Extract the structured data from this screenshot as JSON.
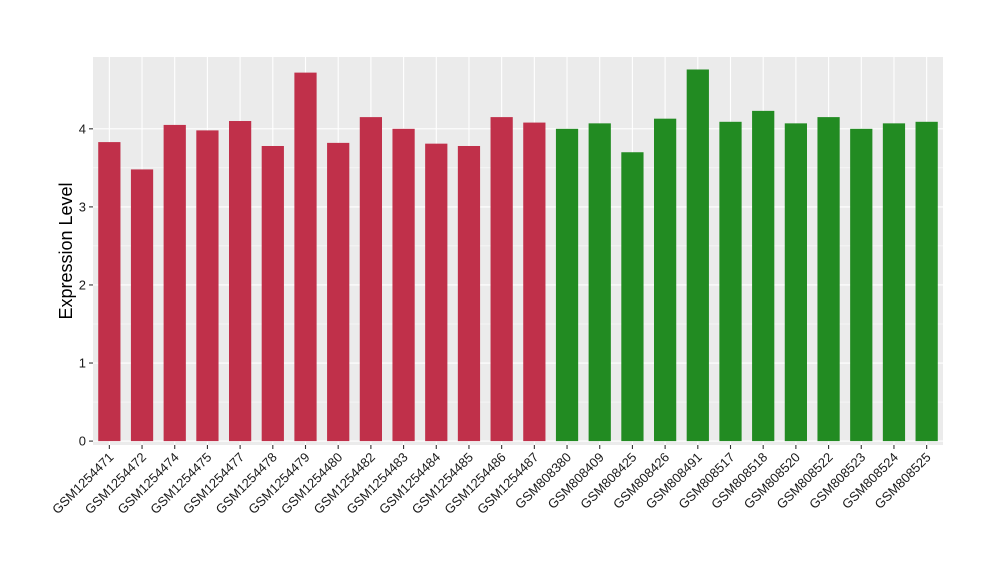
{
  "chart_data": {
    "type": "bar",
    "ylabel": "Expression Level",
    "xlabel": "",
    "title": "",
    "ylim": [
      -0.05,
      4.92
    ],
    "yticks": [
      0,
      1,
      2,
      3,
      4
    ],
    "grid": true,
    "categories": [
      "GSM1254471",
      "GSM1254472",
      "GSM1254474",
      "GSM1254475",
      "GSM1254477",
      "GSM1254478",
      "GSM1254479",
      "GSM1254480",
      "GSM1254482",
      "GSM1254483",
      "GSM1254484",
      "GSM1254485",
      "GSM1254486",
      "GSM1254487",
      "GSM808380",
      "GSM808409",
      "GSM808425",
      "GSM808426",
      "GSM808491",
      "GSM808517",
      "GSM808518",
      "GSM808520",
      "GSM808522",
      "GSM808523",
      "GSM808524",
      "GSM808525"
    ],
    "values": [
      3.83,
      3.48,
      4.05,
      3.98,
      4.1,
      3.78,
      4.72,
      3.82,
      4.15,
      4.0,
      3.81,
      3.78,
      4.15,
      4.08,
      4.0,
      4.07,
      3.7,
      4.13,
      4.76,
      4.09,
      4.23,
      4.07,
      4.15,
      4.0,
      4.07,
      4.09
    ],
    "bar_colors": [
      "#c0304a",
      "#c0304a",
      "#c0304a",
      "#c0304a",
      "#c0304a",
      "#c0304a",
      "#c0304a",
      "#c0304a",
      "#c0304a",
      "#c0304a",
      "#c0304a",
      "#c0304a",
      "#c0304a",
      "#c0304a",
      "#228b22",
      "#228b22",
      "#228b22",
      "#228b22",
      "#228b22",
      "#228b22",
      "#228b22",
      "#228b22",
      "#228b22",
      "#228b22",
      "#228b22",
      "#228b22"
    ],
    "panel_background": "#ebebeb",
    "grid_color": "#ffffff"
  }
}
